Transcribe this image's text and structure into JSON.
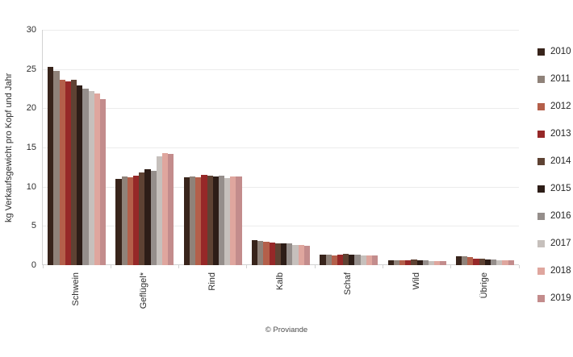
{
  "chart": {
    "footer": "© Proviande",
    "background": "#ffffff"
  },
  "chart_data": {
    "type": "bar",
    "title": "",
    "xlabel": "",
    "ylabel": "kg Verkaufsgewicht pro Kopf und Jahr",
    "ylim": [
      0,
      30
    ],
    "yticks": [
      0,
      5,
      10,
      15,
      20,
      25,
      30
    ],
    "grid": true,
    "legend_position": "right",
    "categories": [
      "Schwein",
      "Geflügel*",
      "Rind",
      "Kalb",
      "Schaf",
      "Wild",
      "Übrige"
    ],
    "series": [
      {
        "name": "2010",
        "color": "#38241b",
        "values": [
          25.3,
          11.0,
          11.2,
          3.2,
          1.3,
          0.6,
          1.1
        ]
      },
      {
        "name": "2011",
        "color": "#8f8279",
        "values": [
          24.8,
          11.3,
          11.3,
          3.1,
          1.3,
          0.6,
          1.1
        ]
      },
      {
        "name": "2012",
        "color": "#b45f4a",
        "values": [
          23.6,
          11.2,
          11.2,
          3.0,
          1.2,
          0.6,
          1.0
        ]
      },
      {
        "name": "2013",
        "color": "#962828",
        "values": [
          23.4,
          11.4,
          11.5,
          2.9,
          1.3,
          0.6,
          0.8
        ]
      },
      {
        "name": "2014",
        "color": "#5e4233",
        "values": [
          23.6,
          11.8,
          11.4,
          2.8,
          1.4,
          0.7,
          0.8
        ]
      },
      {
        "name": "2015",
        "color": "#2d1d17",
        "values": [
          22.9,
          12.2,
          11.3,
          2.8,
          1.3,
          0.6,
          0.7
        ]
      },
      {
        "name": "2016",
        "color": "#958e8b",
        "values": [
          22.5,
          12.0,
          11.4,
          2.8,
          1.3,
          0.6,
          0.7
        ]
      },
      {
        "name": "2017",
        "color": "#c6c0bc",
        "values": [
          22.2,
          13.9,
          11.1,
          2.6,
          1.2,
          0.5,
          0.6
        ]
      },
      {
        "name": "2018",
        "color": "#dfa69e",
        "values": [
          21.9,
          14.3,
          11.3,
          2.6,
          1.2,
          0.5,
          0.6
        ]
      },
      {
        "name": "2019",
        "color": "#c38c8c",
        "values": [
          21.2,
          14.2,
          11.3,
          2.5,
          1.2,
          0.5,
          0.6
        ]
      }
    ]
  }
}
